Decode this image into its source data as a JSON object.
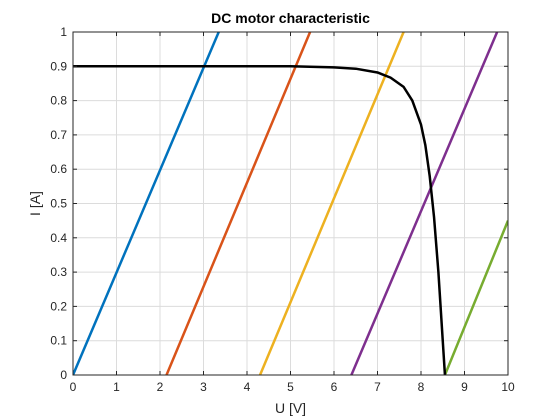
{
  "chart_data": {
    "type": "line",
    "title": "DC motor characteristic",
    "xlabel": "U [V]",
    "ylabel": "I [A]",
    "xlim": [
      0,
      10
    ],
    "ylim": [
      0,
      1
    ],
    "xticks": [
      "0",
      "1",
      "2",
      "3",
      "4",
      "5",
      "6",
      "7",
      "8",
      "9",
      "10"
    ],
    "yticks": [
      "0",
      "0.1",
      "0.2",
      "0.3",
      "0.4",
      "0.5",
      "0.6",
      "0.7",
      "0.8",
      "0.9",
      "1"
    ],
    "grid": true,
    "series": [
      {
        "color": "#0072BD",
        "line_width": 2.5,
        "x": [
          0.0,
          3.35
        ],
        "y": [
          0.0,
          1.0
        ]
      },
      {
        "color": "#D95319",
        "line_width": 2.5,
        "x": [
          2.15,
          5.45
        ],
        "y": [
          0.0,
          1.0
        ]
      },
      {
        "color": "#EDB120",
        "line_width": 2.5,
        "x": [
          4.3,
          7.6
        ],
        "y": [
          0.0,
          1.0
        ]
      },
      {
        "color": "#7E2F8E",
        "line_width": 2.5,
        "x": [
          6.4,
          9.75
        ],
        "y": [
          0.0,
          1.0
        ]
      },
      {
        "color": "#77AC30",
        "line_width": 2.5,
        "x": [
          8.55,
          10.0
        ],
        "y": [
          0.0,
          0.45
        ]
      },
      {
        "color": "#000000",
        "line_width": 2.5,
        "x": [
          0.0,
          1.0,
          2.0,
          3.0,
          4.0,
          5.0,
          6.0,
          6.5,
          7.0,
          7.3,
          7.6,
          7.8,
          8.0,
          8.1,
          8.2,
          8.3,
          8.4,
          8.5,
          8.55
        ],
        "y": [
          0.9,
          0.9,
          0.9,
          0.9,
          0.9,
          0.9,
          0.897,
          0.893,
          0.882,
          0.867,
          0.84,
          0.8,
          0.73,
          0.67,
          0.58,
          0.46,
          0.3,
          0.1,
          0.0
        ]
      }
    ]
  }
}
